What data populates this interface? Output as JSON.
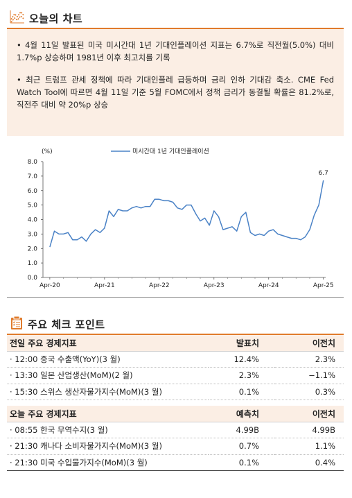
{
  "header1": {
    "title": "오늘의 차트"
  },
  "bullets": [
    "• 4월 11일 발표된 미국 미시간대 1년 기대인플레이션 지표는 6.7%로 직전월(5.0%) 대비 1.7%p 상승하며 1981년 이후 최고치를 기록",
    "• 최근 트럼프 관세 정책에 따라 기대인플레 급등하며 금리 인하 기대감 축소. CME Fed Watch Tool에 따르면 4월 11일 기준 5월 FOMC에서 정책 금리가 동결될 확률은 81.2%로, 직전주 대비 약 20%p 상승"
  ],
  "chart_data": {
    "type": "line",
    "ylabel": "(%)",
    "ylim": [
      0,
      8
    ],
    "yticks": [
      "0.0",
      "1.0",
      "2.0",
      "3.0",
      "4.0",
      "5.0",
      "6.0",
      "7.0",
      "8.0"
    ],
    "xticks": [
      "Apr-20",
      "Apr-21",
      "Apr-22",
      "Apr-23",
      "Apr-24",
      "Apr-25"
    ],
    "series": [
      {
        "name": "미시간대 1년 기대인플레이션",
        "color": "#4a82c6",
        "x": [
          "2020-04",
          "2020-05",
          "2020-06",
          "2020-07",
          "2020-08",
          "2020-09",
          "2020-10",
          "2020-11",
          "2020-12",
          "2021-01",
          "2021-02",
          "2021-03",
          "2021-04",
          "2021-05",
          "2021-06",
          "2021-07",
          "2021-08",
          "2021-09",
          "2021-10",
          "2021-11",
          "2021-12",
          "2022-01",
          "2022-02",
          "2022-03",
          "2022-04",
          "2022-05",
          "2022-06",
          "2022-07",
          "2022-08",
          "2022-09",
          "2022-10",
          "2022-11",
          "2022-12",
          "2023-01",
          "2023-02",
          "2023-03",
          "2023-04",
          "2023-05",
          "2023-06",
          "2023-07",
          "2023-08",
          "2023-09",
          "2023-10",
          "2023-11",
          "2023-12",
          "2024-01",
          "2024-02",
          "2024-03",
          "2024-04",
          "2024-05",
          "2024-06",
          "2024-07",
          "2024-08",
          "2024-09",
          "2024-10",
          "2024-11",
          "2024-12",
          "2025-01",
          "2025-02",
          "2025-03",
          "2025-04"
        ],
        "values": [
          2.1,
          3.2,
          3.0,
          3.0,
          3.1,
          2.6,
          2.6,
          2.8,
          2.5,
          3.0,
          3.3,
          3.1,
          3.4,
          4.6,
          4.2,
          4.7,
          4.6,
          4.6,
          4.8,
          4.9,
          4.8,
          4.9,
          4.9,
          5.4,
          5.4,
          5.3,
          5.3,
          5.2,
          4.8,
          4.7,
          5.0,
          5.0,
          4.4,
          3.9,
          4.1,
          3.6,
          4.6,
          4.2,
          3.3,
          3.4,
          3.5,
          3.2,
          4.2,
          4.5,
          3.1,
          2.9,
          3.0,
          2.9,
          3.2,
          3.3,
          3.0,
          2.9,
          2.8,
          2.7,
          2.7,
          2.6,
          2.8,
          3.3,
          4.3,
          5.0,
          6.7
        ]
      }
    ],
    "annotations": [
      {
        "text": "6.7"
      }
    ]
  },
  "header2": {
    "title": "주요 체크 포인트"
  },
  "table1": {
    "headers": [
      "전일 주요 경제지표",
      "발표치",
      "이전치"
    ],
    "rows": [
      [
        "· 12:00 중국 수출액(YoY)(3 월)",
        "12.4%",
        "2.3%"
      ],
      [
        "· 13:30 일본 산업생산(MoM)(2 월)",
        "2.3%",
        "−1.1%"
      ],
      [
        "· 15:30 스위스 생산자물가지수(MoM)(3 월)",
        "0.1%",
        "0.3%"
      ]
    ]
  },
  "table2": {
    "headers": [
      "오늘 주요 경제지표",
      "예측치",
      "이전치"
    ],
    "rows": [
      [
        "· 08:55 한국 무역수지(3 월)",
        "4.99B",
        "4.99B"
      ],
      [
        "· 21:30 캐나다 소비자물가지수(MoM)(3 월)",
        "0.7%",
        "1.1%"
      ],
      [
        "· 21:30 미국 수입물가지수(MoM)(3 월)",
        "0.1%",
        "0.4%"
      ]
    ]
  },
  "colors": {
    "accent": "#e07b2c",
    "box_bg": "#fbeee4",
    "line": "#4a82c6"
  },
  "icons": {
    "header1": "line-chart-icon",
    "header2": "checklist-icon"
  }
}
